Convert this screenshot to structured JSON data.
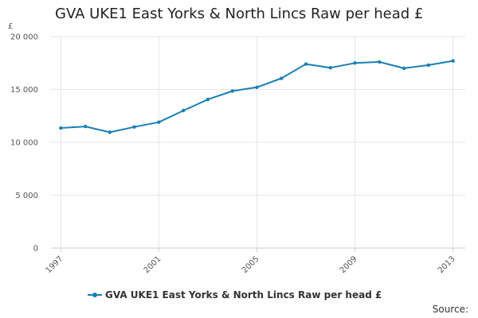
{
  "chart_data": {
    "type": "line",
    "title": "GVA UKE1 East Yorks & North Lincs Raw per head £",
    "ylabel": "£",
    "xlabel": "",
    "x": [
      1997,
      1998,
      1999,
      2000,
      2001,
      2002,
      2003,
      2004,
      2005,
      2006,
      2007,
      2008,
      2009,
      2010,
      2011,
      2012,
      2013
    ],
    "x_tick_labels": [
      "1997",
      "2001",
      "2005",
      "2009",
      "2013"
    ],
    "x_tick_values": [
      1997,
      2001,
      2005,
      2009,
      2013
    ],
    "y_tick_labels": [
      "0",
      "5 000",
      "10 000",
      "15 000",
      "20 000"
    ],
    "y_tick_values": [
      0,
      5000,
      10000,
      15000,
      20000
    ],
    "ylim": [
      0,
      20000
    ],
    "xlim": [
      1996.6,
      2013.5
    ],
    "grid": true,
    "legend_position": "bottom",
    "series": [
      {
        "name": "GVA UKE1 East Yorks & North Lincs Raw per head £",
        "color": "#1a7fb5",
        "values": [
          11350,
          11500,
          10950,
          11450,
          11900,
          13000,
          14050,
          14850,
          15200,
          16050,
          17400,
          17050,
          17500,
          17600,
          17000,
          17300,
          17700
        ]
      }
    ]
  },
  "footer": {
    "source_label": "Source:"
  }
}
